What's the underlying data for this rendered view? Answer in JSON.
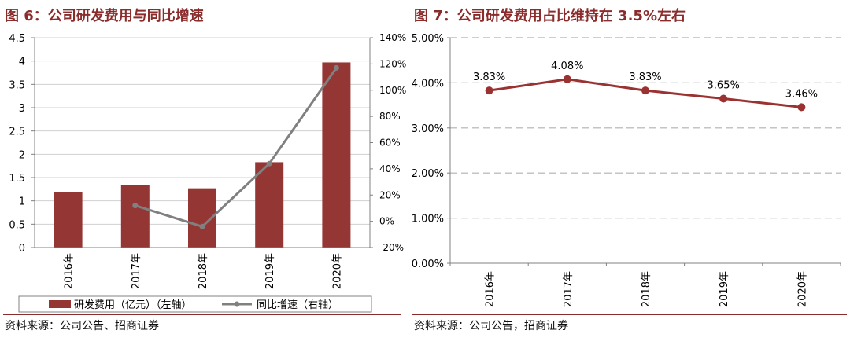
{
  "chart_data": [
    {
      "type": "bar",
      "title": "图 6：公司研发费用与同比增速",
      "categories": [
        "2016年",
        "2017年",
        "2018年",
        "2019年",
        "2020年"
      ],
      "series": [
        {
          "name": "研发费用（亿元）（左轴）",
          "type": "bar",
          "axis": "left",
          "values": [
            1.19,
            1.34,
            1.27,
            1.83,
            3.97
          ],
          "color": "#943634"
        },
        {
          "name": "同比增速（右轴）",
          "type": "line",
          "axis": "right",
          "values": [
            null,
            12,
            -4,
            44,
            117
          ],
          "color": "#808080"
        }
      ],
      "ylim_left": [
        0,
        4.5
      ],
      "yticks_left": [
        "0",
        "0.5",
        "1",
        "1.5",
        "2",
        "2.5",
        "3",
        "3.5",
        "4",
        "4.5"
      ],
      "ylim_right": [
        -20,
        140
      ],
      "yticks_right": [
        "-20%",
        "0%",
        "20%",
        "40%",
        "60%",
        "80%",
        "100%",
        "120%",
        "140%"
      ],
      "grid": true,
      "legend_position": "bottom",
      "source": "资料来源：公司公告、招商证券"
    },
    {
      "type": "line",
      "title": "图 7：公司研发费用占比维持在 3.5%左右",
      "categories": [
        "2016年",
        "2017年",
        "2018年",
        "2019年",
        "2020年"
      ],
      "series": [
        {
          "values": [
            3.83,
            4.08,
            3.83,
            3.65,
            3.46
          ],
          "labels": [
            "3.83%",
            "4.08%",
            "3.83%",
            "3.65%",
            "3.46%"
          ],
          "color": "#9b3232"
        }
      ],
      "ylim": [
        0,
        5
      ],
      "yticks": [
        "0.00%",
        "1.00%",
        "2.00%",
        "3.00%",
        "4.00%",
        "5.00%"
      ],
      "grid": true,
      "source": "资料来源：公司公告，招商证券"
    }
  ]
}
